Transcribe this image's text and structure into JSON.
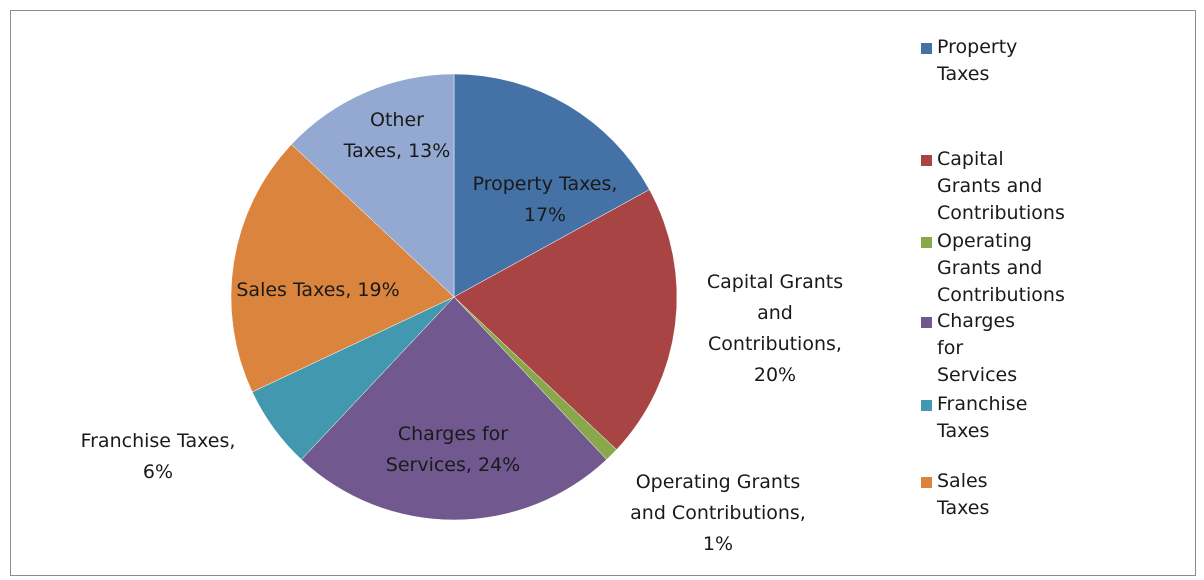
{
  "chart_data": {
    "type": "pie",
    "slices": [
      {
        "name": "Property Taxes",
        "value": 17,
        "color": "#4471A6",
        "label_lines": [
          "Property Taxes,",
          "17%"
        ],
        "legend_lines": [
          "Property Taxes"
        ]
      },
      {
        "name": "Capital Grants and Contributions",
        "value": 20,
        "color": "#A84544",
        "label_lines": [
          "Capital Grants",
          "and",
          "Contributions,",
          "20%"
        ],
        "legend_lines": [
          "Capital Grants and",
          "Contributions"
        ]
      },
      {
        "name": "Operating Grants and Contributions",
        "value": 1,
        "color": "#89A84B",
        "label_lines": [
          "Operating Grants",
          "and Contributions,",
          "1%"
        ],
        "legend_lines": [
          "Operating Grants and",
          "Contributions"
        ]
      },
      {
        "name": "Charges for Services",
        "value": 24,
        "color": "#71588F",
        "label_lines": [
          "Charges for",
          "Services, 24%"
        ],
        "legend_lines": [
          "Charges for Services"
        ]
      },
      {
        "name": "Franchise Taxes",
        "value": 6,
        "color": "#4198AF",
        "label_lines": [
          "Franchise Taxes,",
          "6%"
        ],
        "legend_lines": [
          "Franchise Taxes"
        ]
      },
      {
        "name": "Sales Taxes",
        "value": 19,
        "color": "#DB843D",
        "label_lines": [
          "Sales Taxes, 19%"
        ],
        "legend_lines": [
          "Sales Taxes"
        ]
      },
      {
        "name": "Other Taxes",
        "value": 13,
        "color": "#94A9D1",
        "label_lines": [
          "Other",
          "Taxes, 13%"
        ],
        "legend_lines": []
      }
    ],
    "legend_position": "right"
  }
}
